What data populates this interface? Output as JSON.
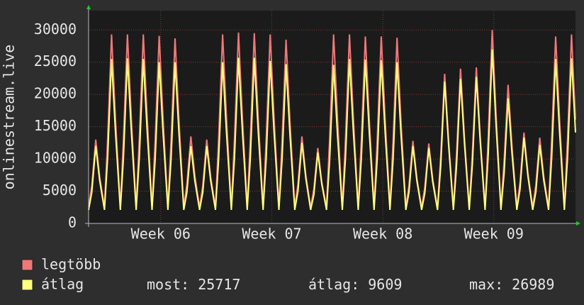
{
  "chart_data": {
    "type": "line",
    "y_label": "onlinestream.live",
    "x": [
      0,
      0.2,
      0.45,
      0.7,
      1,
      1.2,
      1.45,
      1.7,
      2,
      2.2,
      2.45,
      2.7,
      3,
      3.2,
      3.45,
      3.7,
      4,
      4.2,
      4.45,
      4.7,
      5,
      5.2,
      5.45,
      5.7,
      6,
      6.2,
      6.45,
      6.7,
      7,
      7.2,
      7.45,
      7.7,
      8,
      8.2,
      8.45,
      8.7,
      9,
      9.2,
      9.45,
      9.7,
      10,
      10.2,
      10.45,
      10.7,
      11,
      11.2,
      11.45,
      11.7,
      12,
      12.2,
      12.45,
      12.7,
      13,
      13.2,
      13.45,
      13.7,
      14,
      14.2,
      14.45,
      14.7,
      15,
      15.2,
      15.45,
      15.7,
      16,
      16.2,
      16.45,
      16.7,
      17,
      17.2,
      17.45,
      17.7,
      18,
      18.2,
      18.45,
      18.7,
      19,
      19.2,
      19.45,
      19.7,
      20,
      20.2,
      20.45,
      20.7,
      21,
      21.2,
      21.45,
      21.7,
      22,
      22.2,
      22.45,
      22.7,
      23,
      23.2,
      23.45,
      23.7,
      24,
      24.2,
      24.45,
      24.7,
      25,
      25.2,
      25.45,
      25.7,
      26,
      26.2,
      26.45,
      26.7,
      27,
      27.2,
      27.45,
      27.7,
      28,
      28.2,
      28.45,
      28.7,
      29,
      29.2,
      29.45,
      29.7,
      30,
      30.2,
      30.45,
      30.7
    ],
    "series": [
      {
        "name": "legtöbb",
        "color": "#f07878",
        "values": [
          2500,
          5850,
          13000,
          7150,
          2500,
          13200,
          29300,
          16100,
          2500,
          13200,
          29300,
          16100,
          2500,
          13200,
          29300,
          16100,
          2500,
          13100,
          29100,
          16000,
          2500,
          12900,
          28700,
          15800,
          2500,
          6100,
          13500,
          7400,
          2500,
          5850,
          13000,
          7150,
          2500,
          13200,
          29300,
          16100,
          2500,
          13300,
          29600,
          16300,
          2500,
          13300,
          29500,
          16200,
          2500,
          13200,
          29300,
          16100,
          2500,
          12800,
          28500,
          15700,
          2500,
          6100,
          13500,
          7400,
          2500,
          5300,
          11700,
          6400,
          2500,
          13200,
          29300,
          16100,
          2500,
          13200,
          29300,
          16100,
          2500,
          13100,
          29000,
          16000,
          2500,
          13100,
          29000,
          16000,
          2500,
          13000,
          28800,
          15800,
          2500,
          5800,
          12800,
          7000,
          2500,
          5600,
          12400,
          6800,
          2500,
          10400,
          23200,
          12800,
          2500,
          10800,
          24000,
          13200,
          2500,
          10900,
          24200,
          13300,
          2500,
          13500,
          30000,
          16500,
          2500,
          9700,
          21500,
          11800,
          2500,
          6300,
          14100,
          7800,
          2500,
          6000,
          13300,
          7300,
          2500,
          13100,
          29000,
          16000,
          2500,
          13200,
          29300,
          16100
        ]
      },
      {
        "name": "átlag",
        "color": "#ffff80",
        "values": [
          2100,
          4800,
          12000,
          6600,
          2100,
          10200,
          25500,
          14000,
          2100,
          10200,
          25600,
          14100,
          2100,
          10200,
          25500,
          14000,
          2100,
          10000,
          25000,
          13800,
          2100,
          10000,
          25000,
          13800,
          2100,
          4800,
          12000,
          6600,
          2100,
          4800,
          12000,
          6600,
          2100,
          10000,
          25000,
          13800,
          2100,
          10300,
          25700,
          14100,
          2100,
          10300,
          25700,
          14100,
          2100,
          10100,
          25200,
          13900,
          2100,
          9900,
          24700,
          13600,
          2100,
          5000,
          12500,
          6900,
          2100,
          4400,
          11000,
          6100,
          2100,
          9800,
          24600,
          13500,
          2100,
          10200,
          25500,
          14000,
          2100,
          10200,
          25400,
          14000,
          2100,
          10100,
          25300,
          13900,
          2100,
          10000,
          25000,
          13800,
          2100,
          4800,
          12000,
          6600,
          2100,
          4700,
          11700,
          6400,
          2100,
          8800,
          22000,
          12100,
          2100,
          9000,
          22400,
          12300,
          2100,
          9100,
          22700,
          12500,
          2100,
          10800,
          27000,
          14900,
          2100,
          7800,
          19400,
          10700,
          2100,
          5300,
          13300,
          7300,
          2100,
          4900,
          12200,
          6700,
          2100,
          10200,
          25500,
          14000,
          2100,
          10200,
          25600,
          14100
        ]
      }
    ],
    "xlim": [
      0,
      30.7
    ],
    "xticks": [
      {
        "value": 4.55,
        "label": "Week 06"
      },
      {
        "value": 11.55,
        "label": "Week 07"
      },
      {
        "value": 18.55,
        "label": "Week 08"
      },
      {
        "value": 25.55,
        "label": "Week 09"
      }
    ],
    "ylim": [
      0,
      33000
    ],
    "yticks": [
      0,
      5000,
      10000,
      15000,
      20000,
      25000,
      30000
    ],
    "grid": true,
    "stats": [
      {
        "label": "most:",
        "value": 25717
      },
      {
        "label": "átlag:",
        "value": 9609
      },
      {
        "label": "max:",
        "value": 26989
      }
    ]
  }
}
